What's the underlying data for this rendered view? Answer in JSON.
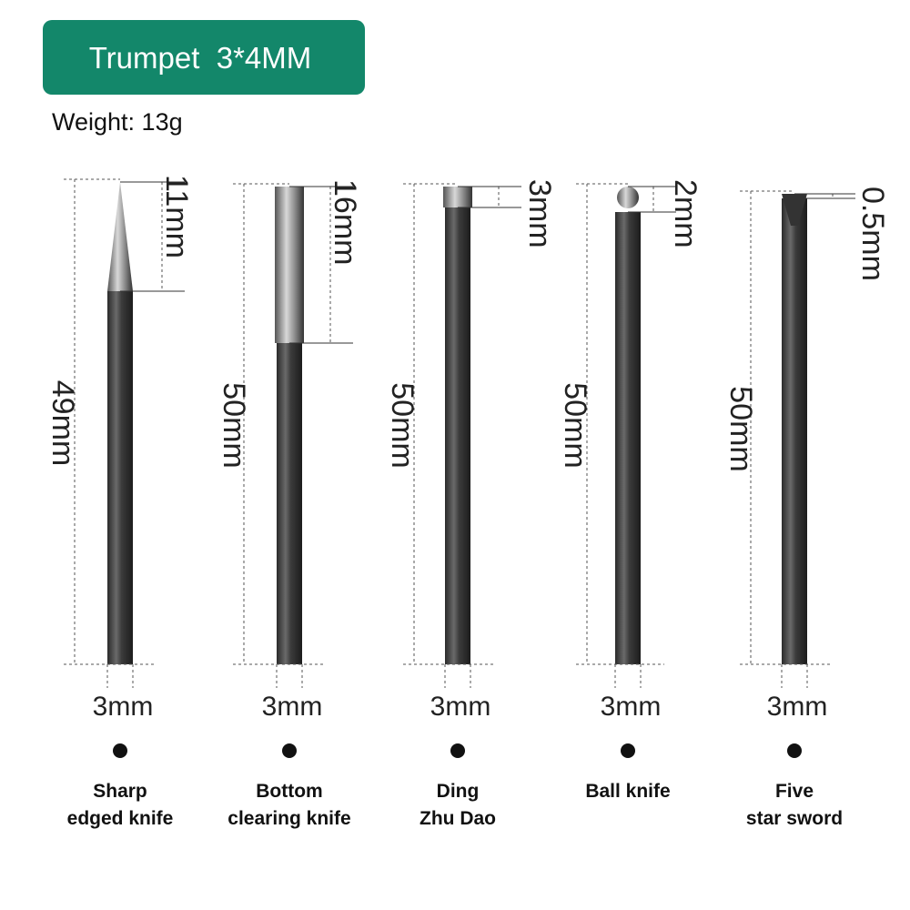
{
  "header": {
    "title": "Trumpet  3*4MM",
    "weight": "Weight: 13g"
  },
  "tools": [
    {
      "tip": "11mm",
      "length": "49mm",
      "diameter": "3mm",
      "name": [
        "Sharp",
        "edged knife"
      ]
    },
    {
      "tip": "16mm",
      "length": "50mm",
      "diameter": "3mm",
      "name": [
        "Bottom",
        "clearing knife"
      ]
    },
    {
      "tip": "3mm",
      "length": "50mm",
      "diameter": "3mm",
      "name": [
        "Ding",
        "Zhu Dao"
      ]
    },
    {
      "tip": "2mm",
      "length": "50mm",
      "diameter": "3mm",
      "name": [
        "Ball knife"
      ]
    },
    {
      "tip": "0.5mm",
      "length": "50mm",
      "diameter": "3mm",
      "name": [
        "Five",
        "star sword"
      ]
    }
  ]
}
